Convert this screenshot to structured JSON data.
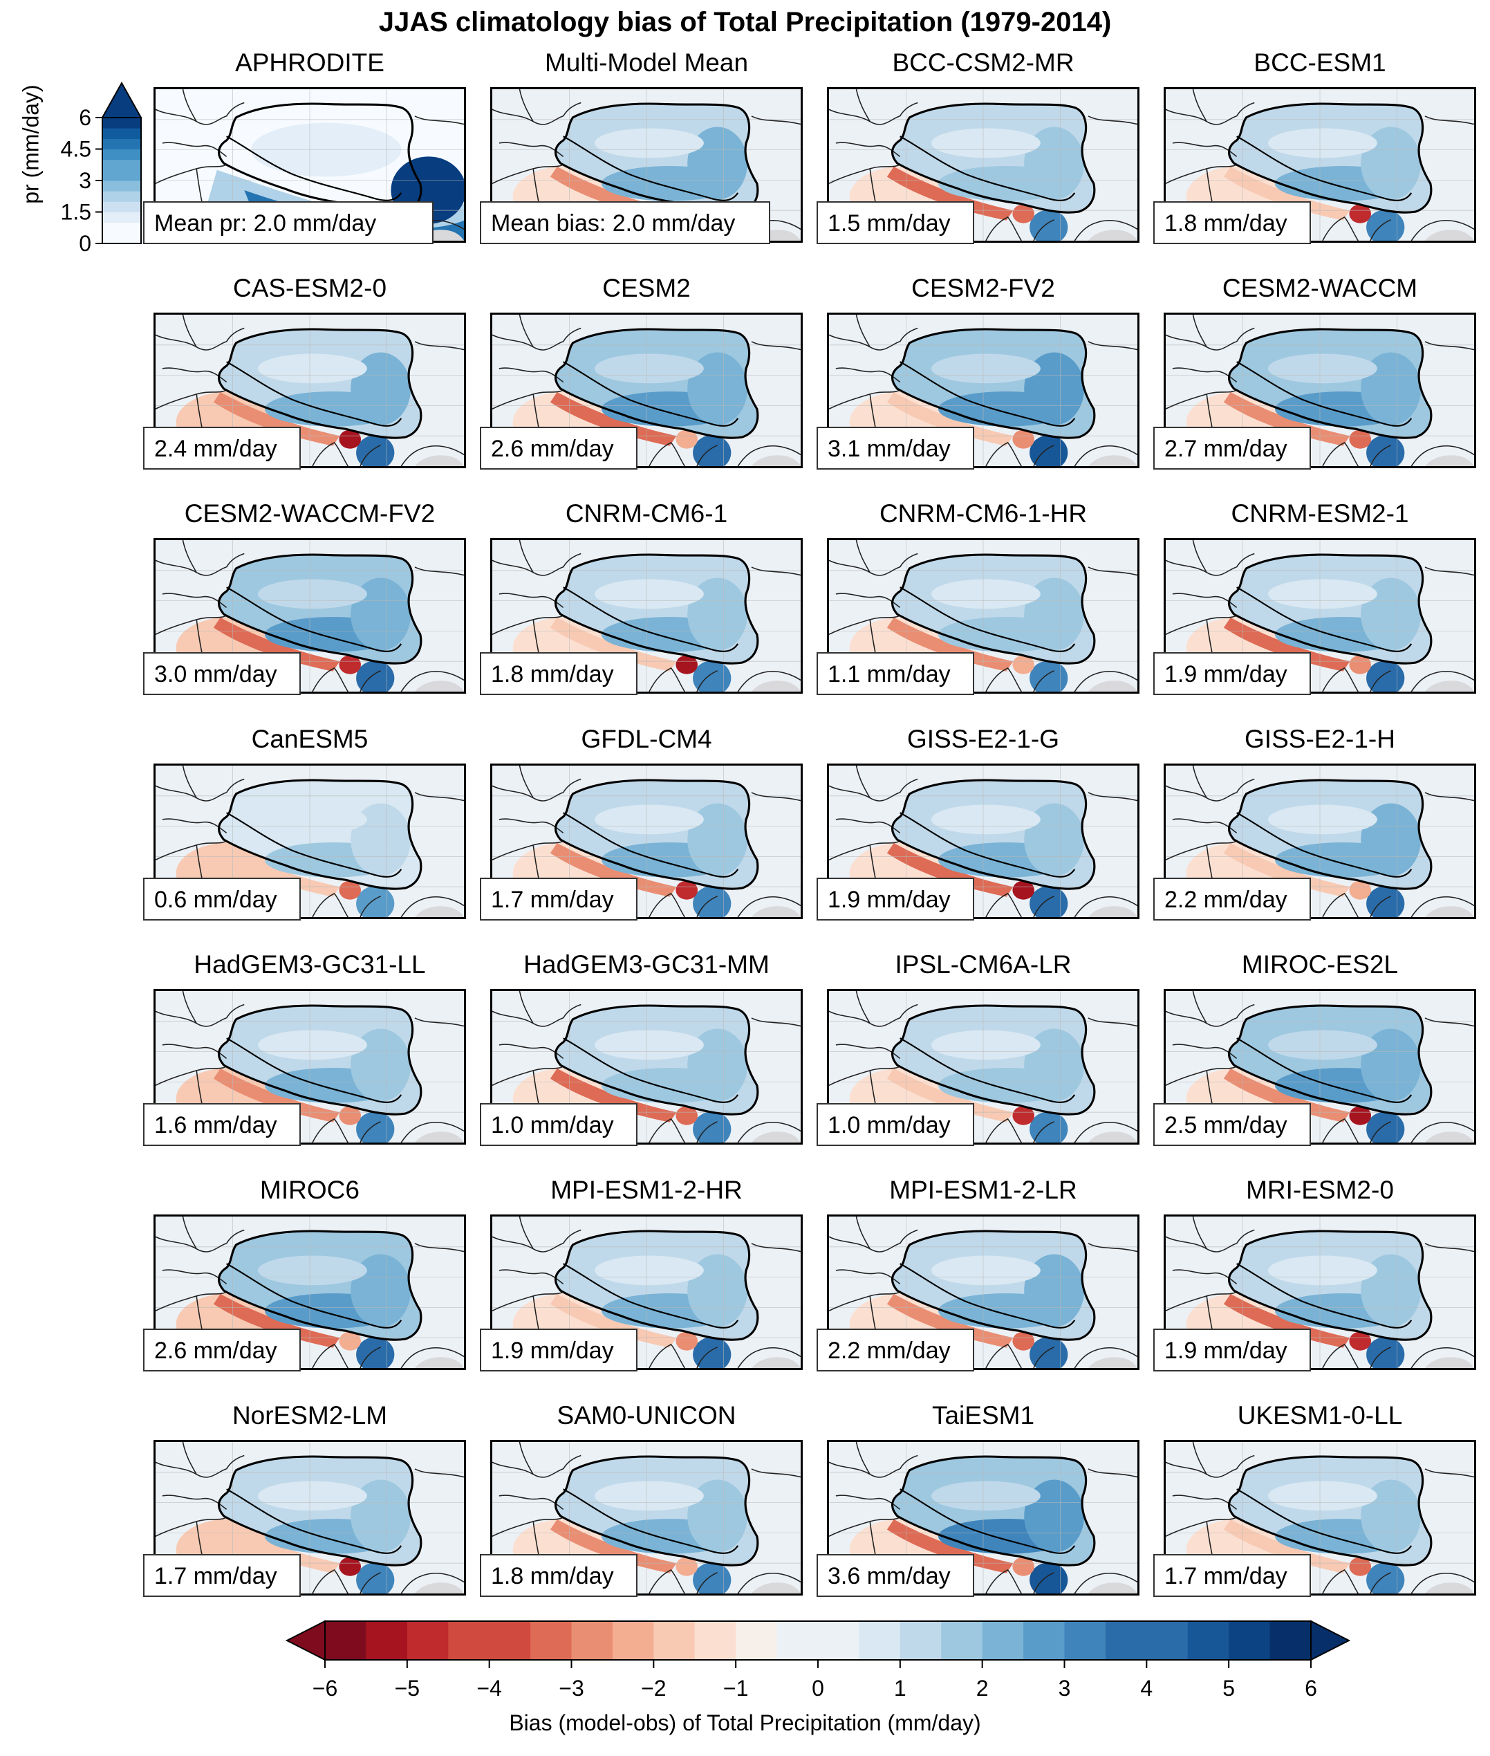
{
  "title": "JJAS climatology bias of Total Precipitation (1979-2014)",
  "panels": [
    {
      "name": "APHRODITE",
      "label": "Mean pr: 2.0 mm/day",
      "kind": "obs"
    },
    {
      "name": "Multi-Model Mean",
      "label": "Mean bias: 2.0 mm/day",
      "kind": "mmm"
    },
    {
      "name": "BCC-CSM2-MR",
      "label": "1.5 mm/day",
      "bias": 1.5
    },
    {
      "name": "BCC-ESM1",
      "label": "1.8 mm/day",
      "bias": 1.8
    },
    {
      "name": "CAS-ESM2-0",
      "label": "2.4 mm/day",
      "bias": 2.4
    },
    {
      "name": "CESM2",
      "label": "2.6 mm/day",
      "bias": 2.6
    },
    {
      "name": "CESM2-FV2",
      "label": "3.1 mm/day",
      "bias": 3.1
    },
    {
      "name": "CESM2-WACCM",
      "label": "2.7 mm/day",
      "bias": 2.7
    },
    {
      "name": "CESM2-WACCM-FV2",
      "label": "3.0 mm/day",
      "bias": 3.0
    },
    {
      "name": "CNRM-CM6-1",
      "label": "1.8 mm/day",
      "bias": 1.8
    },
    {
      "name": "CNRM-CM6-1-HR",
      "label": "1.1 mm/day",
      "bias": 1.1
    },
    {
      "name": "CNRM-ESM2-1",
      "label": "1.9 mm/day",
      "bias": 1.9
    },
    {
      "name": "CanESM5",
      "label": "0.6 mm/day",
      "bias": 0.6
    },
    {
      "name": "GFDL-CM4",
      "label": "1.7 mm/day",
      "bias": 1.7
    },
    {
      "name": "GISS-E2-1-G",
      "label": "1.9 mm/day",
      "bias": 1.9
    },
    {
      "name": "GISS-E2-1-H",
      "label": "2.2 mm/day",
      "bias": 2.2
    },
    {
      "name": "HadGEM3-GC31-LL",
      "label": "1.6 mm/day",
      "bias": 1.6
    },
    {
      "name": "HadGEM3-GC31-MM",
      "label": "1.0 mm/day",
      "bias": 1.0
    },
    {
      "name": "IPSL-CM6A-LR",
      "label": "1.0 mm/day",
      "bias": 1.0
    },
    {
      "name": "MIROC-ES2L",
      "label": "2.5 mm/day",
      "bias": 2.5
    },
    {
      "name": "MIROC6",
      "label": "2.6 mm/day",
      "bias": 2.6
    },
    {
      "name": "MPI-ESM1-2-HR",
      "label": "1.9 mm/day",
      "bias": 1.9
    },
    {
      "name": "MPI-ESM1-2-LR",
      "label": "2.2 mm/day",
      "bias": 2.2
    },
    {
      "name": "MRI-ESM2-0",
      "label": "1.9 mm/day",
      "bias": 1.9
    },
    {
      "name": "NorESM2-LM",
      "label": "1.7 mm/day",
      "bias": 1.7
    },
    {
      "name": "SAM0-UNICON",
      "label": "1.8 mm/day",
      "bias": 1.8
    },
    {
      "name": "TaiESM1",
      "label": "3.6 mm/day",
      "bias": 3.6
    },
    {
      "name": "UKESM1-0-LL",
      "label": "1.7 mm/day",
      "bias": 1.7
    }
  ],
  "pr_colorbar": {
    "label": "pr (mm/day)",
    "ticks": [
      "0",
      "1.5",
      "3",
      "4.5",
      "6"
    ],
    "tick_values": [
      0,
      1.5,
      3,
      4.5,
      6
    ],
    "min": 0,
    "max": 6
  },
  "bias_colorbar": {
    "label": "Bias (model-obs) of Total Precipitation (mm/day)",
    "ticks": [
      "−6",
      "−5",
      "−4",
      "−3",
      "−2",
      "−1",
      "0",
      "1",
      "2",
      "3",
      "4",
      "5",
      "6"
    ],
    "min": -6,
    "max": 6,
    "colors": [
      "#7f0c1e",
      "#a6141f",
      "#c02b2e",
      "#d14a40",
      "#de6b55",
      "#ea8e73",
      "#f3ae92",
      "#f8cab3",
      "#fbe0d2",
      "#f7efea",
      "#ecf1f6",
      "#d9e8f2",
      "#c0d9ea",
      "#9ec8e0",
      "#7ab3d5",
      "#5a9cc9",
      "#3f84bb",
      "#2a6ca9",
      "#185797",
      "#0b4383",
      "#07306b"
    ],
    "neutral_color": "#f5f5f5",
    "land_mask_color": "#d9d9dc"
  }
}
